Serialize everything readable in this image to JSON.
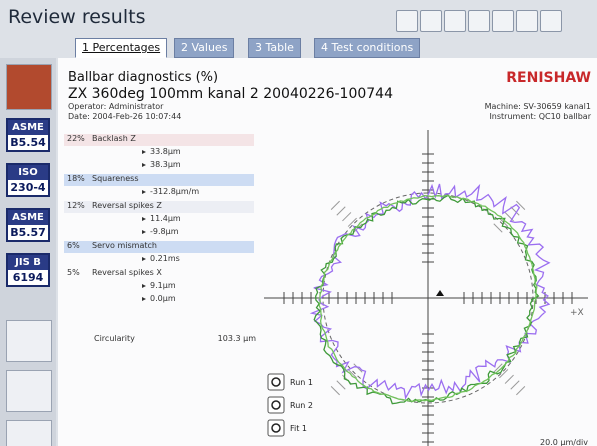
{
  "window": {
    "title": "Review results"
  },
  "tabs": [
    "1 Percentages",
    "2 Values",
    "3 Table",
    "4 Test conditions"
  ],
  "standards": [
    {
      "line1": "ASME",
      "line2": "B5.54"
    },
    {
      "line1": "ISO",
      "line2": "230-4"
    },
    {
      "line1": "ASME",
      "line2": "B5.57"
    },
    {
      "line1": "JIS B",
      "line2": "6194"
    }
  ],
  "report": {
    "title": "Ballbar diagnostics (%)",
    "subtitle": "ZX 360deg 100mm kanal 2 20040226-100744",
    "operator": "Operator: Administrator",
    "date": "Date: 2004-Feb-26 10:07:44",
    "brand": "RENISHAW",
    "machine": "Machine: SV-30659 kanal1",
    "instrument": "Instrument: QC10 ballbar"
  },
  "diagnostics": [
    {
      "percent": "22%",
      "name": "Backlash Z",
      "values": [
        "33.8µm",
        "38.3µm"
      ]
    },
    {
      "percent": "18%",
      "name": "Squareness",
      "values": [
        "-312.8µm/m"
      ]
    },
    {
      "percent": "12%",
      "name": "Reversal spikes Z",
      "values": [
        "11.4µm",
        "-9.8µm"
      ]
    },
    {
      "percent": "6%",
      "name": "Servo mismatch",
      "values": [
        "0.21ms"
      ]
    },
    {
      "percent": "5%",
      "name": "Reversal spikes X",
      "values": [
        "9.1µm",
        "0.0µm"
      ]
    }
  ],
  "circularity": {
    "label": "Circularity",
    "value": "103.3 µm"
  },
  "plot": {
    "legend": [
      "Run 1",
      "Run 2",
      "Fit 1"
    ],
    "axis_label": "+X",
    "scale": "20.0 µm/div"
  }
}
